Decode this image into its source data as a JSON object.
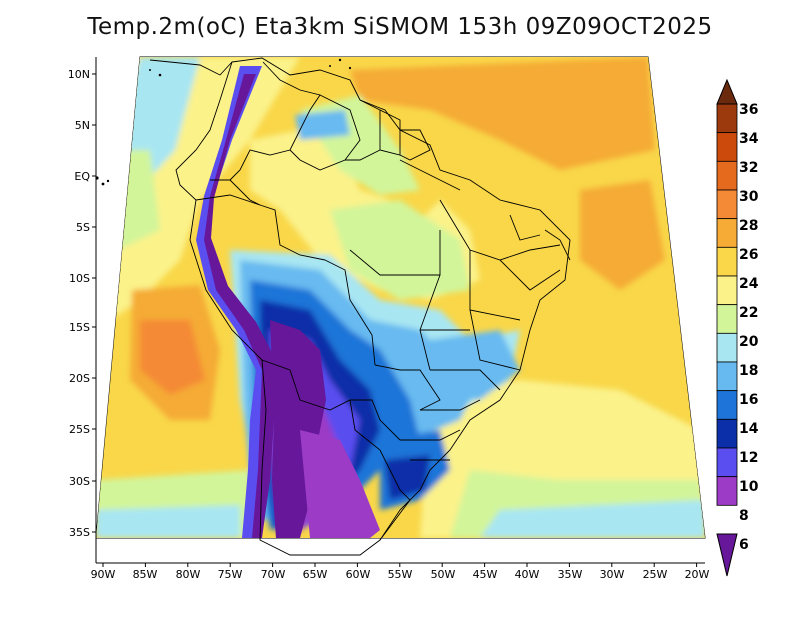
{
  "title": "Temp.2m(oC) Eta3km SiSMOM 153h 09Z09OCT2025",
  "map": {
    "lat_labels": [
      "10N",
      "5N",
      "EQ",
      "5S",
      "10S",
      "15S",
      "20S",
      "25S",
      "30S",
      "35S"
    ],
    "lon_labels": [
      "90W",
      "85W",
      "80W",
      "75W",
      "70W",
      "65W",
      "60W",
      "55W",
      "50W",
      "45W",
      "40W",
      "35W",
      "30W",
      "25W",
      "20W"
    ]
  },
  "colorbar": {
    "labels": [
      "36",
      "34",
      "32",
      "30",
      "28",
      "26",
      "24",
      "22",
      "20",
      "18",
      "16",
      "14",
      "12",
      "10",
      "8",
      "6"
    ],
    "colors": [
      "#6b2a0e",
      "#9c3a0e",
      "#cc4a0c",
      "#e56a1e",
      "#f48a35",
      "#f5ab35",
      "#f9d749",
      "#fbf28a",
      "#d2f59a",
      "#a8e6f2",
      "#67baf0",
      "#1e74d8",
      "#0b2fa8",
      "#5a4ef0",
      "#9b3bc6",
      "#66179a"
    ]
  }
}
